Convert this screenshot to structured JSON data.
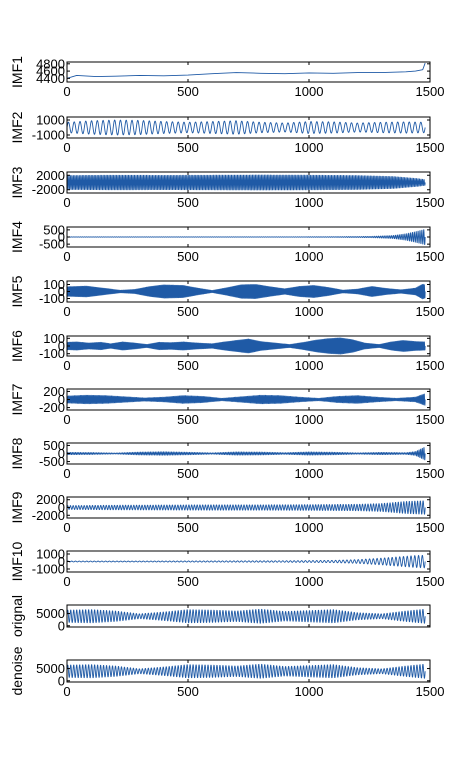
{
  "chart_data": [
    {
      "type": "line",
      "ylabel": "IMF1",
      "xlim": [
        0,
        1500
      ],
      "x_ticks": [
        "0",
        "500",
        "1000",
        "1500"
      ],
      "ylim": [
        4300,
        4850
      ],
      "y_ticks": [
        4800,
        4600,
        4400
      ],
      "y_tick_labels": [
        "4800",
        "4600",
        "4400"
      ],
      "series": [
        {
          "kind": "trend",
          "x": [
            0,
            40,
            120,
            200,
            300,
            400,
            500,
            600,
            700,
            800,
            900,
            1000,
            1100,
            1200,
            1300,
            1400,
            1440,
            1470,
            1480
          ],
          "y": [
            4400,
            4480,
            4450,
            4460,
            4480,
            4470,
            4490,
            4530,
            4560,
            4540,
            4530,
            4550,
            4540,
            4560,
            4560,
            4580,
            4600,
            4640,
            4820
          ]
        }
      ],
      "color": "#1f5aa6"
    },
    {
      "type": "line",
      "ylabel": "IMF2",
      "xlim": [
        0,
        1500
      ],
      "x_ticks": [
        "0",
        "500",
        "1000",
        "1500"
      ],
      "ylim": [
        -1400,
        1400
      ],
      "y_ticks": [
        1000,
        -1000
      ],
      "y_tick_labels": [
        "1000",
        "-1000"
      ],
      "series": [
        {
          "kind": "oscillation",
          "cycles": 62,
          "x_end": 1480,
          "envelope_x": [
            0,
            100,
            200,
            300,
            400,
            500,
            600,
            700,
            800,
            900,
            1000,
            1100,
            1200,
            1300,
            1400,
            1480
          ],
          "envelope_y": [
            700,
            900,
            1000,
            950,
            800,
            700,
            800,
            900,
            700,
            600,
            800,
            750,
            600,
            700,
            750,
            700
          ]
        }
      ],
      "color": "#1f5aa6"
    },
    {
      "type": "line",
      "ylabel": "IMF3",
      "xlim": [
        0,
        1500
      ],
      "x_ticks": [
        "0",
        "500",
        "1000",
        "1500"
      ],
      "ylim": [
        -2900,
        2900
      ],
      "y_ticks": [
        2000,
        -2000
      ],
      "y_tick_labels": [
        "2000",
        "-2000"
      ],
      "series": [
        {
          "kind": "oscillation",
          "cycles": 240,
          "x_end": 1480,
          "envelope_x": [
            0,
            200,
            400,
            600,
            800,
            1000,
            1200,
            1350,
            1450,
            1480
          ],
          "envelope_y": [
            2000,
            2100,
            2050,
            2100,
            2150,
            2100,
            2000,
            1700,
            1100,
            800
          ]
        }
      ],
      "color": "#1f5aa6"
    },
    {
      "type": "line",
      "ylabel": "IMF4",
      "xlim": [
        0,
        1500
      ],
      "x_ticks": [
        "0",
        "500",
        "1000",
        "1500"
      ],
      "ylim": [
        -700,
        700
      ],
      "y_ticks": [
        500,
        0,
        -500
      ],
      "y_tick_labels": [
        "500",
        "0",
        "-500"
      ],
      "series": [
        {
          "kind": "oscillation",
          "cycles": 190,
          "x_end": 1480,
          "envelope_x": [
            0,
            300,
            600,
            900,
            1100,
            1250,
            1350,
            1400,
            1440,
            1480
          ],
          "envelope_y": [
            15,
            15,
            15,
            15,
            20,
            40,
            110,
            230,
            380,
            560
          ]
        }
      ],
      "color": "#1f5aa6"
    },
    {
      "type": "line",
      "ylabel": "IMF5",
      "xlim": [
        0,
        1500
      ],
      "x_ticks": [
        "0",
        "500",
        "1000",
        "1500"
      ],
      "ylim": [
        -150,
        150
      ],
      "y_ticks": [
        100,
        0,
        -100
      ],
      "y_tick_labels": [
        "100",
        "0",
        "-100"
      ],
      "series": [
        {
          "kind": "oscillation",
          "cycles": 330,
          "x_end": 1480,
          "envelope_x": [
            0,
            80,
            160,
            220,
            280,
            340,
            400,
            480,
            540,
            600,
            660,
            720,
            780,
            840,
            900,
            960,
            1020,
            1080,
            1140,
            1200,
            1260,
            1320,
            1380,
            1440,
            1470,
            1480
          ],
          "envelope_y": [
            70,
            80,
            45,
            18,
            30,
            72,
            98,
            90,
            50,
            15,
            55,
            100,
            105,
            70,
            40,
            75,
            90,
            60,
            20,
            35,
            75,
            45,
            25,
            50,
            110,
            95
          ]
        }
      ],
      "color": "#1f5aa6"
    },
    {
      "type": "line",
      "ylabel": "IMF6",
      "xlim": [
        0,
        1500
      ],
      "x_ticks": [
        "0",
        "500",
        "1000",
        "1500"
      ],
      "ylim": [
        -130,
        130
      ],
      "y_ticks": [
        100,
        0,
        -100
      ],
      "y_tick_labels": [
        "100",
        "0",
        "-100"
      ],
      "series": [
        {
          "kind": "oscillation",
          "cycles": 330,
          "x_end": 1480,
          "envelope_x": [
            0,
            40,
            90,
            140,
            180,
            230,
            280,
            330,
            380,
            430,
            480,
            540,
            600,
            650,
            700,
            750,
            800,
            860,
            920,
            980,
            1030,
            1080,
            1130,
            1180,
            1230,
            1290,
            1340,
            1390,
            1440,
            1480
          ],
          "envelope_y": [
            50,
            55,
            40,
            50,
            30,
            55,
            40,
            20,
            50,
            45,
            55,
            40,
            30,
            55,
            75,
            95,
            60,
            40,
            20,
            50,
            80,
            100,
            110,
            85,
            40,
            20,
            55,
            75,
            60,
            55
          ]
        }
      ],
      "color": "#1f5aa6"
    },
    {
      "type": "line",
      "ylabel": "IMF7",
      "xlim": [
        0,
        1500
      ],
      "x_ticks": [
        "0",
        "500",
        "1000",
        "1500"
      ],
      "ylim": [
        -260,
        260
      ],
      "y_ticks": [
        200,
        0,
        -200
      ],
      "y_tick_labels": [
        "200",
        "0",
        "-200"
      ],
      "series": [
        {
          "kind": "oscillation",
          "cycles": 300,
          "x_end": 1480,
          "envelope_x": [
            0,
            80,
            160,
            240,
            320,
            400,
            480,
            560,
            640,
            720,
            800,
            880,
            960,
            1040,
            1120,
            1200,
            1280,
            1360,
            1440,
            1480
          ],
          "envelope_y": [
            90,
            110,
            100,
            70,
            40,
            60,
            100,
            80,
            30,
            70,
            110,
            100,
            60,
            30,
            80,
            100,
            60,
            30,
            60,
            150
          ]
        }
      ],
      "color": "#1f5aa6"
    },
    {
      "type": "line",
      "ylabel": "IMF8",
      "xlim": [
        0,
        1500
      ],
      "x_ticks": [
        "0",
        "500",
        "1000",
        "1500"
      ],
      "ylim": [
        -650,
        650
      ],
      "y_ticks": [
        500,
        0,
        -500
      ],
      "y_tick_labels": [
        "500",
        "0",
        "-500"
      ],
      "series": [
        {
          "kind": "oscillation",
          "cycles": 220,
          "x_end": 1480,
          "envelope_x": [
            0,
            100,
            200,
            300,
            400,
            500,
            600,
            700,
            800,
            900,
            1000,
            1100,
            1200,
            1300,
            1400,
            1440,
            1480
          ],
          "envelope_y": [
            70,
            60,
            30,
            90,
            110,
            80,
            40,
            100,
            90,
            50,
            100,
            80,
            40,
            70,
            50,
            120,
            420
          ]
        }
      ],
      "color": "#1f5aa6"
    },
    {
      "type": "line",
      "ylabel": "IMF9",
      "xlim": [
        0,
        1500
      ],
      "x_ticks": [
        "0",
        "500",
        "1000",
        "1500"
      ],
      "ylim": [
        -2700,
        2700
      ],
      "y_ticks": [
        2000,
        0,
        -2000
      ],
      "y_tick_labels": [
        "2000",
        "0",
        "-2000"
      ],
      "series": [
        {
          "kind": "oscillation",
          "cycles": 130,
          "x_end": 1480,
          "envelope_x": [
            0,
            200,
            400,
            600,
            800,
            1000,
            1200,
            1300,
            1400,
            1480
          ],
          "envelope_y": [
            500,
            600,
            650,
            700,
            700,
            750,
            850,
            1050,
            1600,
            1800
          ]
        }
      ],
      "color": "#1f5aa6"
    },
    {
      "type": "line",
      "ylabel": "IMF10",
      "xlim": [
        0,
        1500
      ],
      "x_ticks": [
        "0",
        "500",
        "1000",
        "1500"
      ],
      "ylim": [
        -1400,
        1400
      ],
      "y_ticks": [
        1000,
        0,
        -1000
      ],
      "y_tick_labels": [
        "1000",
        "0",
        "-1000"
      ],
      "series": [
        {
          "kind": "oscillation",
          "cycles": 95,
          "x_end": 1480,
          "envelope_x": [
            0,
            300,
            600,
            900,
            1100,
            1200,
            1300,
            1380,
            1440,
            1480
          ],
          "envelope_y": [
            60,
            60,
            80,
            100,
            150,
            250,
            450,
            650,
            800,
            850
          ]
        }
      ],
      "color": "#1f5aa6"
    },
    {
      "type": "line",
      "ylabel": "orignal",
      "xlim": [
        0,
        1500
      ],
      "x_ticks": [
        "",
        "",
        "",
        ""
      ],
      "ylim": [
        -500,
        8500
      ],
      "y_ticks": [
        5000,
        0
      ],
      "y_tick_labels": [
        "5000",
        "0"
      ],
      "series": [
        {
          "kind": "oscillation",
          "cycles": 120,
          "x_end": 1480,
          "center": 3900,
          "envelope_x": [
            0,
            100,
            200,
            300,
            400,
            500,
            600,
            700,
            800,
            900,
            1000,
            1100,
            1200,
            1300,
            1400,
            1480
          ],
          "envelope_y": [
            2600,
            2800,
            2200,
            1000,
            1800,
            2800,
            2600,
            2200,
            3000,
            2000,
            2400,
            2800,
            1500,
            1000,
            2200,
            3000
          ]
        }
      ],
      "color": "#1f5aa6"
    },
    {
      "type": "line",
      "ylabel": "denoise",
      "xlim": [
        0,
        1500
      ],
      "x_ticks": [
        "0",
        "500",
        "1000",
        "1500"
      ],
      "ylim": [
        -500,
        8500
      ],
      "y_ticks": [
        5000,
        0
      ],
      "y_tick_labels": [
        "5000",
        "0"
      ],
      "series": [
        {
          "kind": "oscillation",
          "cycles": 120,
          "x_end": 1480,
          "center": 3900,
          "envelope_x": [
            0,
            100,
            200,
            300,
            400,
            500,
            600,
            700,
            800,
            900,
            1000,
            1100,
            1200,
            1300,
            1400,
            1480
          ],
          "envelope_y": [
            2600,
            2800,
            2200,
            1000,
            1800,
            2800,
            2600,
            2200,
            3000,
            2000,
            2400,
            2800,
            1500,
            1000,
            2200,
            3000
          ]
        }
      ],
      "color": "#1f5aa6"
    }
  ]
}
